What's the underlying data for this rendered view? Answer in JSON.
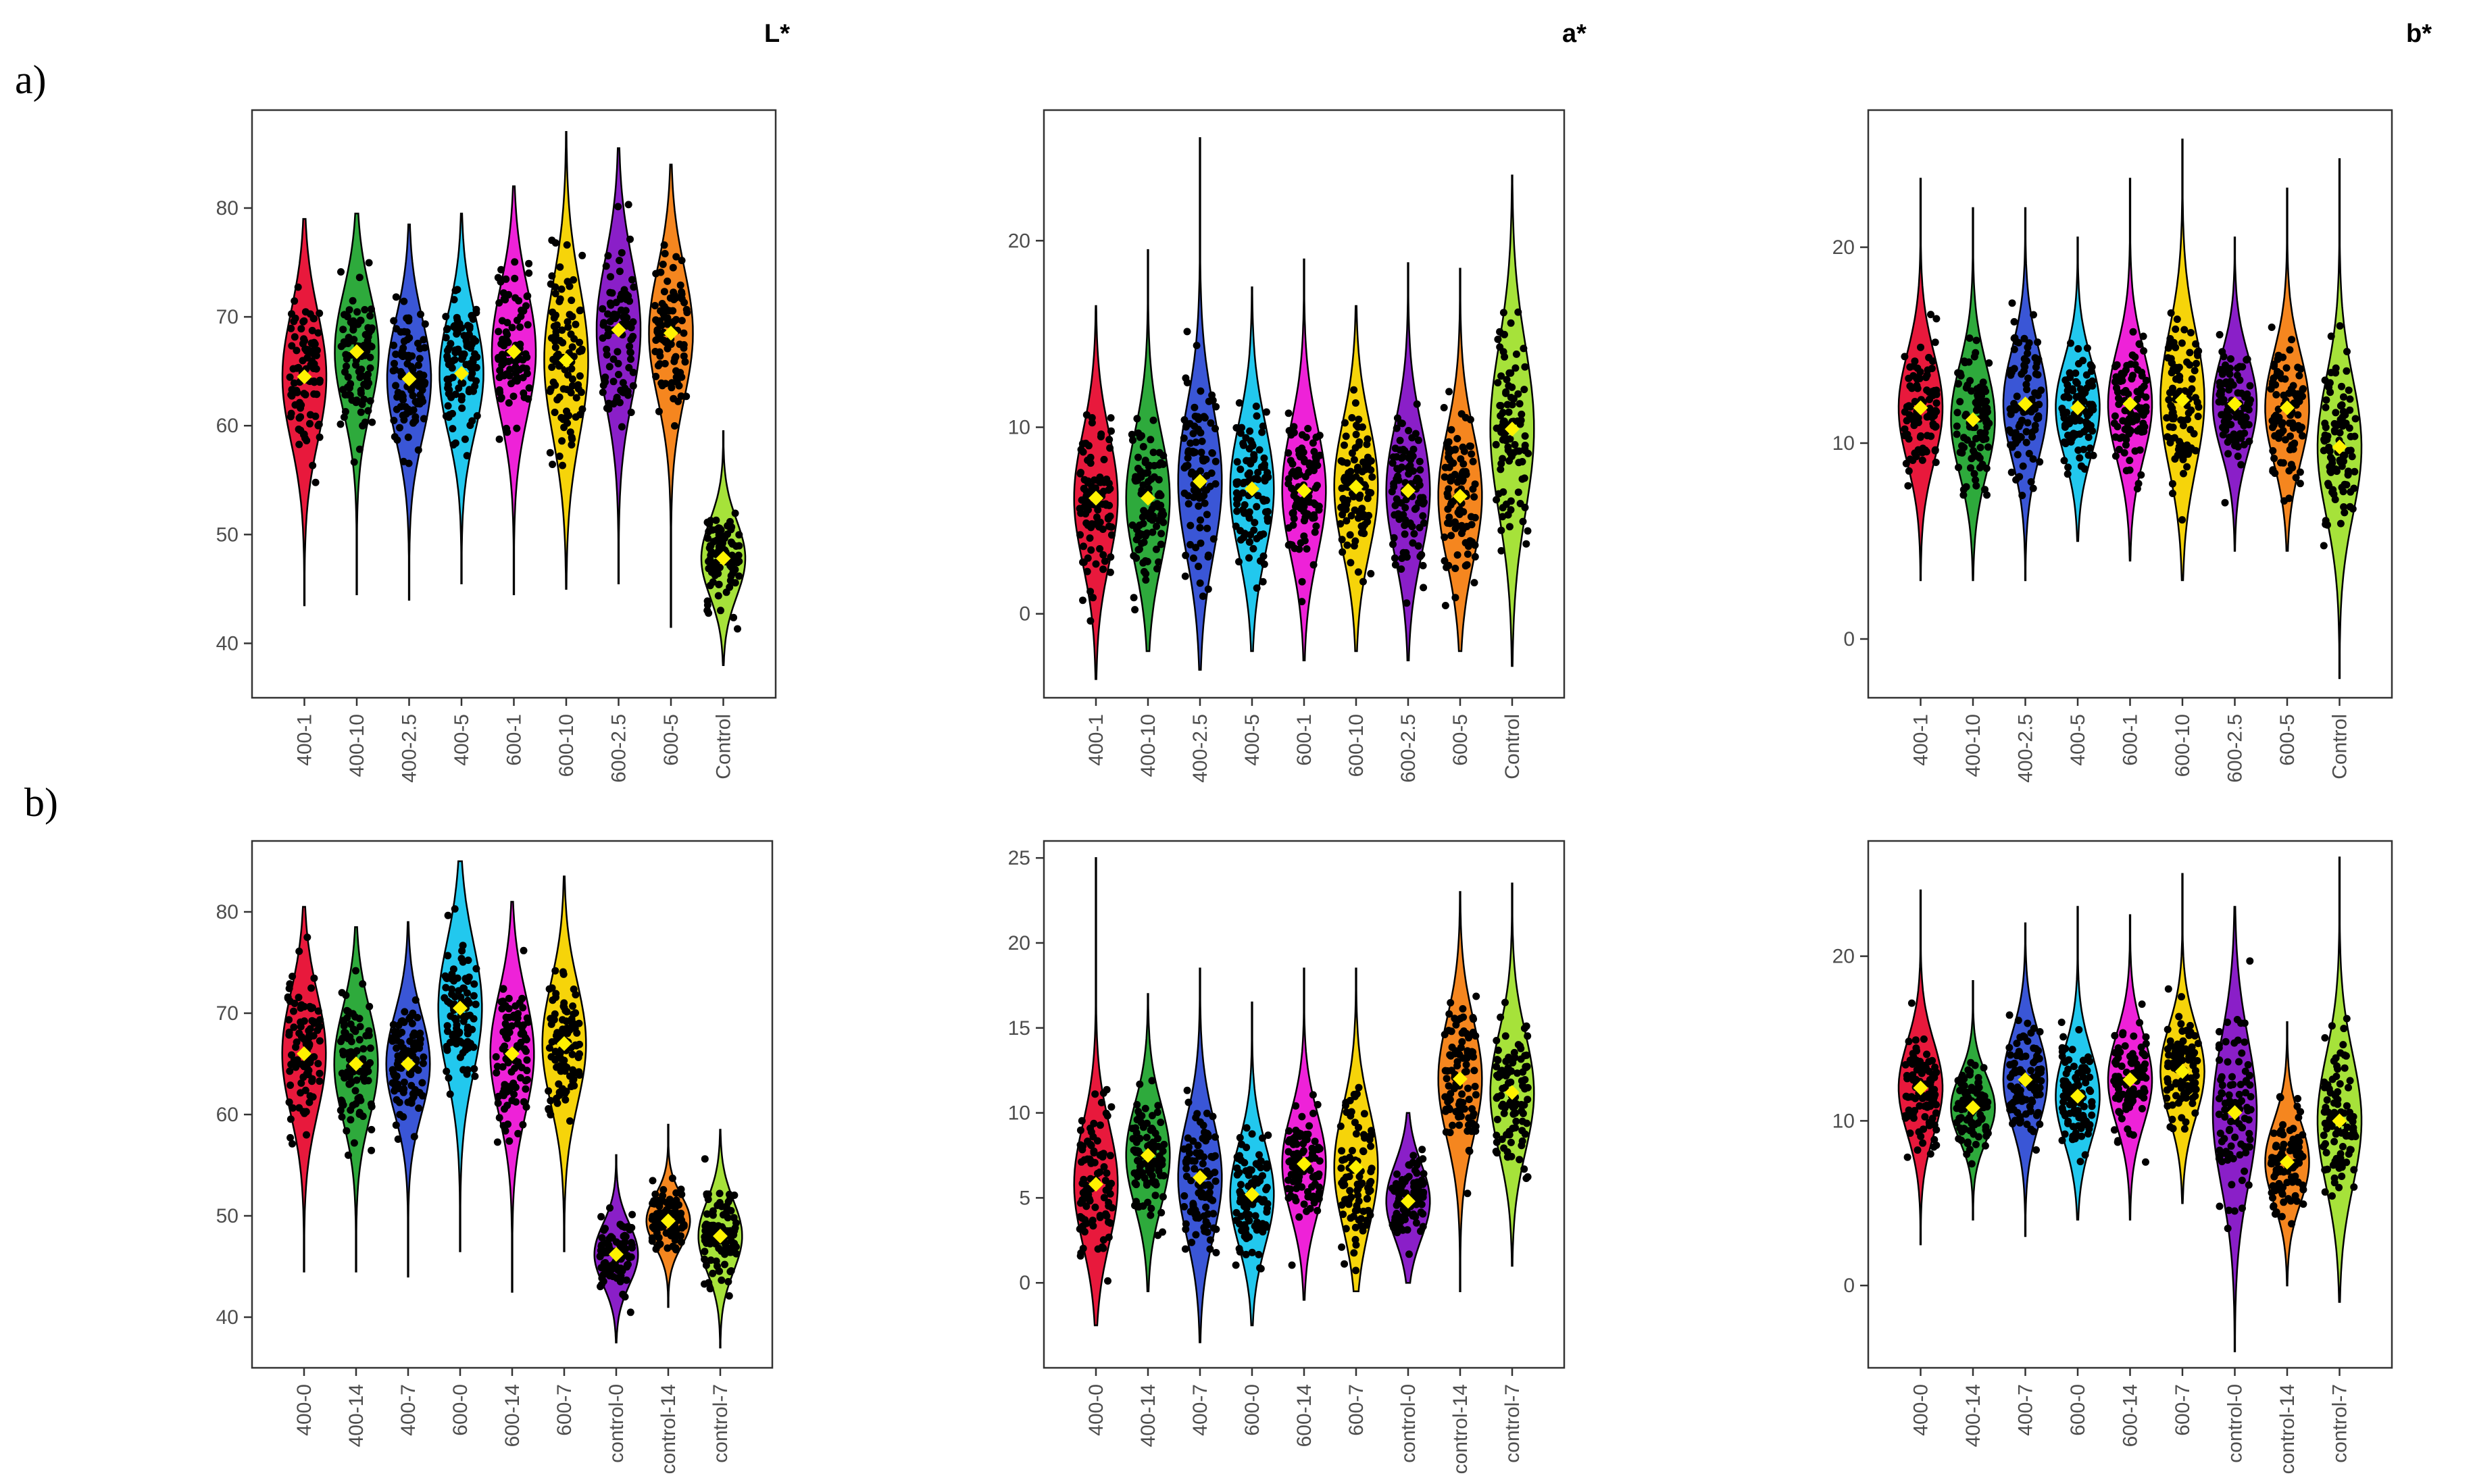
{
  "figure": {
    "row_labels": [
      "a)",
      "b)"
    ],
    "column_titles": [
      "L*",
      "a*",
      "b*"
    ]
  },
  "colors": {
    "400-1": "#e8193c",
    "400-0": "#e8193c",
    "400-10": "#2eaa3c",
    "400-14": "#2eaa3c",
    "400-2.5": "#3a56d6",
    "400-7": "#3a56d6",
    "400-5": "#22c8ee",
    "600-0": "#22c8ee",
    "600-1": "#ee22d8",
    "600-14": "#ee22d8",
    "600-10": "#f6d40a",
    "600-7": "#f6d40a",
    "600-2.5": "#8a1fc8",
    "control-0": "#8a1fc8",
    "600-5": "#f5861f",
    "control-14": "#f5861f",
    "Control": "#a6e23a",
    "control-7": "#a6e23a",
    "mean_marker": "#fff200",
    "points": "#000000"
  },
  "chart_data": [
    {
      "type": "violin",
      "row": "a)",
      "title": "L*",
      "categories": [
        "400-1",
        "400-10",
        "400-2.5",
        "400-5",
        "600-1",
        "600-10",
        "600-2.5",
        "600-5",
        "Control"
      ],
      "ylim": [
        35,
        89
      ],
      "yticks": [
        "40",
        "50",
        "60",
        "70",
        "80"
      ],
      "means": [
        64.5,
        66.8,
        64.3,
        64.8,
        66.8,
        66.0,
        68.8,
        68.5,
        47.8
      ],
      "mins": [
        43.5,
        44.5,
        44.0,
        45.5,
        44.5,
        45.0,
        45.5,
        41.5,
        38.0
      ],
      "maxs": [
        79.0,
        79.5,
        78.5,
        79.5,
        82.0,
        87.0,
        85.5,
        84.0,
        59.5
      ],
      "spread": [
        6.0,
        5.5,
        5.5,
        5.5,
        6.0,
        7.0,
        6.5,
        6.0,
        3.5
      ]
    },
    {
      "type": "violin",
      "row": "a)",
      "title": "a*",
      "categories": [
        "400-1",
        "400-10",
        "400-2.5",
        "400-5",
        "600-1",
        "600-10",
        "600-2.5",
        "600-5",
        "Control"
      ],
      "ylim": [
        -4.5,
        27
      ],
      "yticks": [
        "0",
        "10",
        "20"
      ],
      "means": [
        6.2,
        6.2,
        7.1,
        6.7,
        6.6,
        6.8,
        6.6,
        6.3,
        9.9
      ],
      "mins": [
        -3.5,
        -2.0,
        -3.0,
        -2.0,
        -2.5,
        -2.0,
        -2.5,
        -2.0,
        -2.8
      ],
      "maxs": [
        16.5,
        19.5,
        25.5,
        17.5,
        19.0,
        16.5,
        18.8,
        18.5,
        23.5
      ],
      "spread": [
        3.5,
        3.5,
        4.0,
        3.5,
        3.5,
        3.5,
        3.5,
        3.5,
        4.5
      ]
    },
    {
      "type": "violin",
      "row": "a)",
      "title": "b*",
      "categories": [
        "400-1",
        "400-10",
        "400-2.5",
        "400-5",
        "600-1",
        "600-10",
        "600-2.5",
        "600-5",
        "Control"
      ],
      "ylim": [
        -3,
        27
      ],
      "yticks": [
        "0",
        "10",
        "20"
      ],
      "means": [
        11.8,
        11.2,
        12.0,
        11.8,
        12.0,
        12.2,
        12.0,
        11.8,
        9.8
      ],
      "mins": [
        3.0,
        3.0,
        3.0,
        5.0,
        4.0,
        3.0,
        4.5,
        4.5,
        -2.0
      ],
      "maxs": [
        23.5,
        22.0,
        22.0,
        20.5,
        23.5,
        25.5,
        20.5,
        23.0,
        24.5
      ],
      "spread": [
        2.8,
        2.8,
        2.8,
        2.5,
        2.8,
        3.5,
        2.5,
        2.8,
        3.5
      ]
    },
    {
      "type": "violin",
      "row": "b)",
      "title": "L*",
      "categories": [
        "400-0",
        "400-14",
        "400-7",
        "600-0",
        "600-14",
        "600-7",
        "control-0",
        "control-14",
        "control-7"
      ],
      "ylim": [
        35,
        87
      ],
      "yticks": [
        "40",
        "50",
        "60",
        "70",
        "80"
      ],
      "means": [
        66.0,
        65.0,
        65.0,
        70.5,
        66.0,
        67.0,
        46.2,
        49.5,
        48.0
      ],
      "mins": [
        44.5,
        44.5,
        44.0,
        46.5,
        42.5,
        46.5,
        37.5,
        41.0,
        37.0
      ],
      "maxs": [
        80.5,
        78.5,
        79.0,
        85.0,
        81.0,
        83.5,
        56.0,
        59.0,
        58.5
      ],
      "spread": [
        6.0,
        5.5,
        5.0,
        6.5,
        6.0,
        6.0,
        3.0,
        2.5,
        3.5
      ]
    },
    {
      "type": "violin",
      "row": "b)",
      "title": "a*",
      "categories": [
        "400-0",
        "400-14",
        "400-7",
        "600-0",
        "600-14",
        "600-7",
        "control-0",
        "control-14",
        "control-7"
      ],
      "ylim": [
        -5,
        26
      ],
      "yticks": [
        "0",
        "5",
        "10",
        "15",
        "20",
        "25"
      ],
      "means": [
        5.8,
        7.5,
        6.2,
        5.2,
        7.0,
        6.8,
        4.8,
        12.0,
        11.2
      ],
      "mins": [
        -2.5,
        -0.5,
        -3.5,
        -2.5,
        -1.0,
        -0.5,
        0.0,
        -0.5,
        1.0
      ],
      "maxs": [
        25.0,
        17.0,
        18.5,
        16.5,
        18.5,
        18.5,
        10.0,
        23.0,
        23.5
      ],
      "spread": [
        3.5,
        3.0,
        3.5,
        3.0,
        3.0,
        3.5,
        2.2,
        3.5,
        3.5
      ]
    },
    {
      "type": "violin",
      "row": "b)",
      "title": "b*",
      "categories": [
        "400-0",
        "400-14",
        "400-7",
        "600-0",
        "600-14",
        "600-7",
        "control-0",
        "control-14",
        "control-7"
      ],
      "ylim": [
        -5,
        27
      ],
      "yticks": [
        "0",
        "10",
        "20"
      ],
      "means": [
        12.0,
        10.8,
        12.5,
        11.5,
        12.5,
        13.0,
        10.5,
        7.5,
        10.0
      ],
      "mins": [
        2.5,
        4.0,
        3.0,
        4.0,
        4.0,
        5.0,
        -4.0,
        0.0,
        -1.0
      ],
      "maxs": [
        24.0,
        18.5,
        22.0,
        23.0,
        22.5,
        25.0,
        23.0,
        16.0,
        26.0
      ],
      "spread": [
        2.8,
        2.0,
        2.8,
        2.8,
        2.8,
        2.8,
        4.5,
        2.5,
        4.0
      ]
    }
  ]
}
